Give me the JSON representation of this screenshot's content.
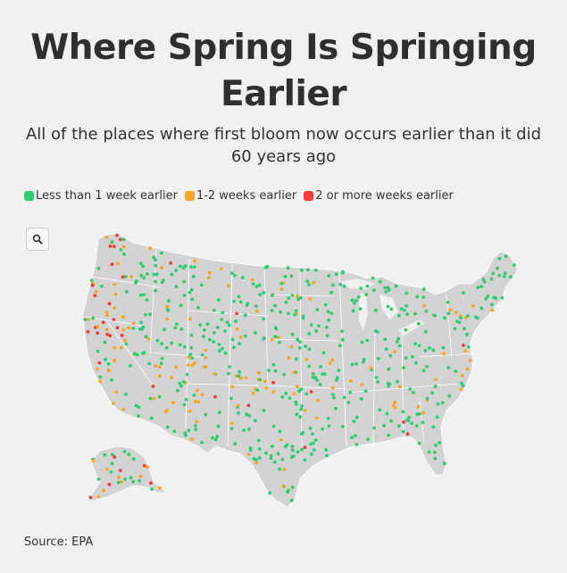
{
  "title": "Where Spring Is Springing Earlier",
  "subtitle": "All of the places where first bloom now occurs earlier than it did 60 years ago",
  "legend": [
    {
      "label": "Less than 1 week earlier",
      "color": "#2ecc71",
      "icon": "green-dot-icon"
    },
    {
      "label": "1-2 weeks earlier",
      "color": "#f5a623",
      "icon": "orange-dot-icon"
    },
    {
      "label": "2 or more weeks earlier",
      "color": "#ef3b3b",
      "icon": "red-dot-icon"
    }
  ],
  "search": {
    "icon": "search-icon"
  },
  "map": {
    "land_color": "#d3d3d3",
    "border_color": "#ffffff",
    "category_colors": [
      "#2ecc71",
      "#f5a623",
      "#ef3b3b"
    ]
  },
  "source": "Source: EPA"
}
